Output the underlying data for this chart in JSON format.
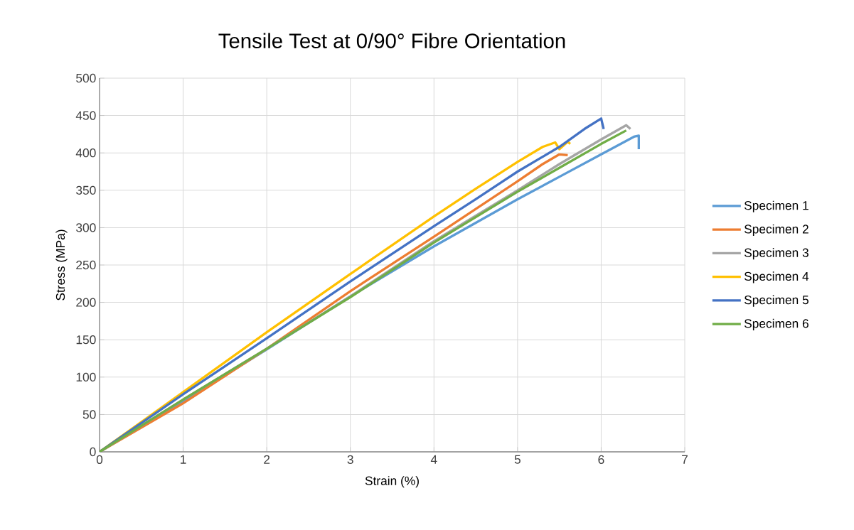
{
  "chart_data": {
    "type": "line",
    "title": "Tensile Test at 0/90° Fibre Orientation",
    "xlabel": "Strain (%)",
    "ylabel": "Stress (MPa)",
    "xlim": [
      0,
      7
    ],
    "ylim": [
      0,
      500
    ],
    "xticks": [
      0,
      1,
      2,
      3,
      4,
      5,
      6,
      7
    ],
    "yticks": [
      0,
      50,
      100,
      150,
      200,
      250,
      300,
      350,
      400,
      450,
      500
    ],
    "grid": true,
    "legend": "right",
    "marker": "none",
    "line_style": "solid",
    "series": [
      {
        "name": "Specimen 1",
        "color": "#5b9bd5",
        "x": [
          0,
          1,
          2,
          3,
          4,
          5,
          5.5,
          6,
          6.4,
          6.45,
          6.45
        ],
        "values": [
          0,
          68,
          137,
          208,
          275,
          338,
          368,
          398,
          422,
          423,
          405
        ]
      },
      {
        "name": "Specimen 2",
        "color": "#ed7d31",
        "x": [
          0,
          1,
          2,
          3,
          4,
          4.5,
          5,
          5.3,
          5.5,
          5.6
        ],
        "values": [
          0,
          65,
          138,
          215,
          288,
          325,
          362,
          385,
          398,
          397
        ]
      },
      {
        "name": "Specimen 3",
        "color": "#a5a5a5",
        "x": [
          0,
          1,
          2,
          3,
          4,
          5,
          5.5,
          6,
          6.3,
          6.35
        ],
        "values": [
          0,
          70,
          138,
          208,
          282,
          350,
          385,
          418,
          437,
          432
        ]
      },
      {
        "name": "Specimen 4",
        "color": "#ffc000",
        "x": [
          0,
          1,
          2,
          3,
          4,
          4.5,
          5,
          5.3,
          5.45,
          5.5,
          5.6,
          5.63
        ],
        "values": [
          0,
          80,
          160,
          238,
          315,
          352,
          388,
          408,
          414,
          405,
          415,
          412
        ]
      },
      {
        "name": "Specimen 5",
        "color": "#4472c4",
        "x": [
          0,
          1,
          2,
          3,
          4,
          4.5,
          5,
          5.5,
          5.8,
          6.0,
          6.03
        ],
        "values": [
          0,
          77,
          152,
          228,
          302,
          338,
          375,
          408,
          432,
          446,
          432
        ]
      },
      {
        "name": "Specimen 6",
        "color": "#70ad47",
        "x": [
          0,
          1,
          2,
          3,
          4,
          5,
          5.5,
          6,
          6.3
        ],
        "values": [
          0,
          70,
          138,
          207,
          280,
          348,
          380,
          412,
          430
        ]
      }
    ]
  }
}
